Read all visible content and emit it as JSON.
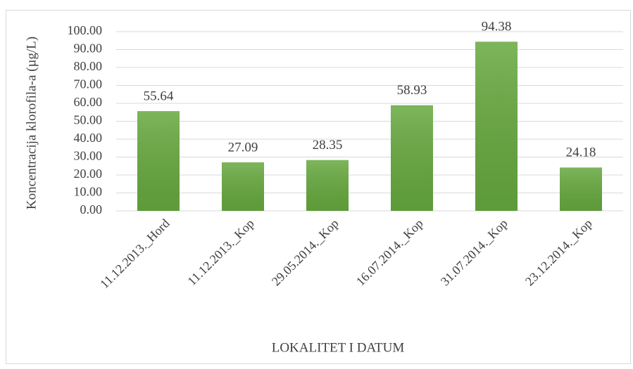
{
  "chart_data": {
    "type": "bar",
    "categories": [
      "11.12.2013._Hord",
      "11.12.2013._Kop",
      "29.05.2014._Kop",
      "16.07.2014._Kop",
      "31.07.2014._Kop",
      "23.12.2014._Kop"
    ],
    "values": [
      55.64,
      27.09,
      28.35,
      58.93,
      94.38,
      24.18
    ],
    "color": "#66a83e",
    "ylim": [
      0,
      100
    ],
    "yticks": [
      {
        "value": 0,
        "label": "0.00"
      },
      {
        "value": 10,
        "label": "10.00"
      },
      {
        "value": 20,
        "label": "20.00"
      },
      {
        "value": 30,
        "label": "30.00"
      },
      {
        "value": 40,
        "label": "40.00"
      },
      {
        "value": 50,
        "label": "50.00"
      },
      {
        "value": 60,
        "label": "60.00"
      },
      {
        "value": 70,
        "label": "70.00"
      },
      {
        "value": 80,
        "label": "80.00"
      },
      {
        "value": 90,
        "label": "90.00"
      },
      {
        "value": 100,
        "label": "100.00"
      }
    ],
    "grid": true,
    "ylabel": "Koncentracija klorofila-a (µg/L)",
    "xlabel": "LOKALITET I DATUM"
  }
}
